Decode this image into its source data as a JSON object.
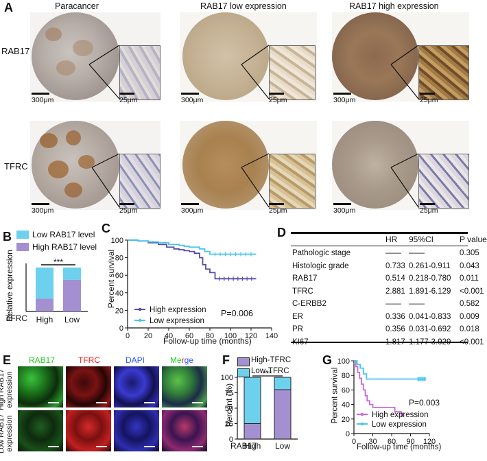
{
  "panelA": {
    "label": "A",
    "columns": [
      "Paracancer",
      "RAB17 low expression",
      "RAB17 high expression"
    ],
    "rows": [
      "RAB17",
      "TFRC"
    ],
    "scale_large": "300μm",
    "scale_small": "25μm"
  },
  "panelB": {
    "label": "B",
    "legend": [
      "Low RAB17 level",
      "High RAB17 level"
    ],
    "ylabel": "Relative expression",
    "xlabel_prefix": "TFRC",
    "significance": "***",
    "colors": {
      "low": "#6dd0ec",
      "high": "#a48fd0"
    }
  },
  "panelC": {
    "label": "C",
    "ylabel": "Percent survival",
    "xlabel": "Follow-up time (months)",
    "legend": [
      "High expression",
      "Low expression"
    ],
    "pvalue": "P=0.006",
    "colors": {
      "high": "#5b4aa8",
      "low": "#46c6ee"
    }
  },
  "panelD": {
    "label": "D",
    "headers": [
      "",
      "HR",
      "95%CI",
      "P value"
    ],
    "rows": [
      [
        "Pathologic stage",
        "——",
        "——",
        "0.305"
      ],
      [
        "Histologic grade",
        "0.733",
        "0.261-0.911",
        "0.043"
      ],
      [
        "RAB17",
        "0.514",
        "0.218-0.780",
        "0.011"
      ],
      [
        "TFRC",
        "2.881",
        "1.891-6.129",
        "<0.001"
      ],
      [
        "C-ERBB2",
        "——",
        "——",
        "0.582"
      ],
      [
        "ER",
        "0.336",
        "0.041-0.833",
        "0.009"
      ],
      [
        "PR",
        "0.356",
        "0.031-0.692",
        "0.018"
      ],
      [
        "KI67",
        "1.817",
        "1.177-3.929",
        "<0.001"
      ]
    ]
  },
  "panelE": {
    "label": "E",
    "channels": [
      "RAB17",
      "TFRC",
      "DAPI"
    ],
    "merge_parts": [
      "Me",
      "r",
      "ge"
    ],
    "row_labels": [
      [
        "High RAB17",
        "expression"
      ],
      [
        "Low RAB17",
        "expression"
      ]
    ],
    "channel_colors": {
      "RAB17": "#22cc22",
      "TFRC": "#ee2222",
      "DAPI": "#3355ff"
    }
  },
  "panelF": {
    "label": "F",
    "legend": [
      "High-TFRC",
      "Low-TFRC"
    ],
    "ylabel": "Percent (%)",
    "xlabel_prefix": "RAB17",
    "significance": "***",
    "colors": {
      "high": "#a48fd0",
      "low": "#6dd0ec"
    }
  },
  "panelG": {
    "label": "G",
    "ylabel": "Percent survival",
    "xlabel": "Follow-up time (months)",
    "legend": [
      "High expression",
      "Low expression"
    ],
    "pvalue": "P=0.003",
    "colors": {
      "high": "#cc66dd",
      "low": "#46c6ee"
    }
  },
  "chart_data": [
    {
      "id": "B",
      "type": "bar",
      "stacked": true,
      "categories": [
        "High",
        "Low"
      ],
      "series": [
        {
          "name": "High RAB17 level",
          "values": [
            0.29,
            0.72
          ]
        },
        {
          "name": "Low RAB17 level",
          "values": [
            0.71,
            0.28
          ]
        }
      ],
      "ylabel": "Relative expression",
      "ylim": [
        0,
        1
      ]
    },
    {
      "id": "C",
      "type": "line",
      "step": true,
      "xlabel": "Follow-up time (months)",
      "ylabel": "Percent survival",
      "xlim": [
        0,
        140
      ],
      "ylim": [
        0,
        100
      ],
      "xticks": [
        0,
        20,
        40,
        60,
        80,
        100,
        120,
        140
      ],
      "yticks": [
        0,
        20,
        40,
        60,
        80,
        100
      ],
      "series": [
        {
          "name": "High expression",
          "x": [
            0,
            10,
            20,
            30,
            38,
            45,
            50,
            55,
            60,
            65,
            70,
            73,
            76,
            80,
            85,
            125
          ],
          "y": [
            100,
            99,
            97,
            95,
            92,
            90,
            89,
            88,
            87,
            85,
            80,
            72,
            67,
            63,
            56,
            56
          ]
        },
        {
          "name": "Low expression",
          "x": [
            0,
            10,
            20,
            30,
            40,
            50,
            55,
            60,
            70,
            75,
            80,
            125
          ],
          "y": [
            100,
            99,
            98,
            97,
            95,
            94,
            93,
            92,
            90,
            87,
            84,
            84
          ]
        }
      ],
      "annotation": "P=0.006"
    },
    {
      "id": "F",
      "type": "bar",
      "stacked": true,
      "categories": [
        "High",
        "Low"
      ],
      "series": [
        {
          "name": "High-TFRC",
          "values": [
            25,
            80
          ]
        },
        {
          "name": "Low-TFRC",
          "values": [
            75,
            20
          ]
        }
      ],
      "ylabel": "Percent (%)",
      "ylim": [
        0,
        100
      ],
      "yticks": [
        0,
        25,
        50,
        75,
        100
      ]
    },
    {
      "id": "G",
      "type": "line",
      "step": true,
      "xlabel": "Follow-up time (months)",
      "ylabel": "Percent survival",
      "xlim": [
        0,
        120
      ],
      "ylim": [
        0,
        100
      ],
      "xticks": [
        0,
        30,
        60,
        90,
        120
      ],
      "yticks": [
        0,
        20,
        40,
        60,
        80,
        100
      ],
      "series": [
        {
          "name": "High expression",
          "x": [
            0,
            3,
            6,
            9,
            12,
            15,
            18,
            21,
            25,
            30,
            40,
            50,
            60,
            65,
            70,
            75,
            78
          ],
          "y": [
            100,
            92,
            84,
            76,
            68,
            60,
            52,
            45,
            40,
            36,
            36,
            36,
            36,
            30,
            30,
            26,
            26
          ]
        },
        {
          "name": "Low expression",
          "x": [
            0,
            5,
            10,
            15,
            20,
            30,
            40,
            60,
            80,
            100,
            115
          ],
          "y": [
            100,
            95,
            90,
            82,
            75,
            75,
            75,
            75,
            75,
            75,
            75
          ]
        }
      ],
      "annotation": "P=0.003"
    }
  ]
}
